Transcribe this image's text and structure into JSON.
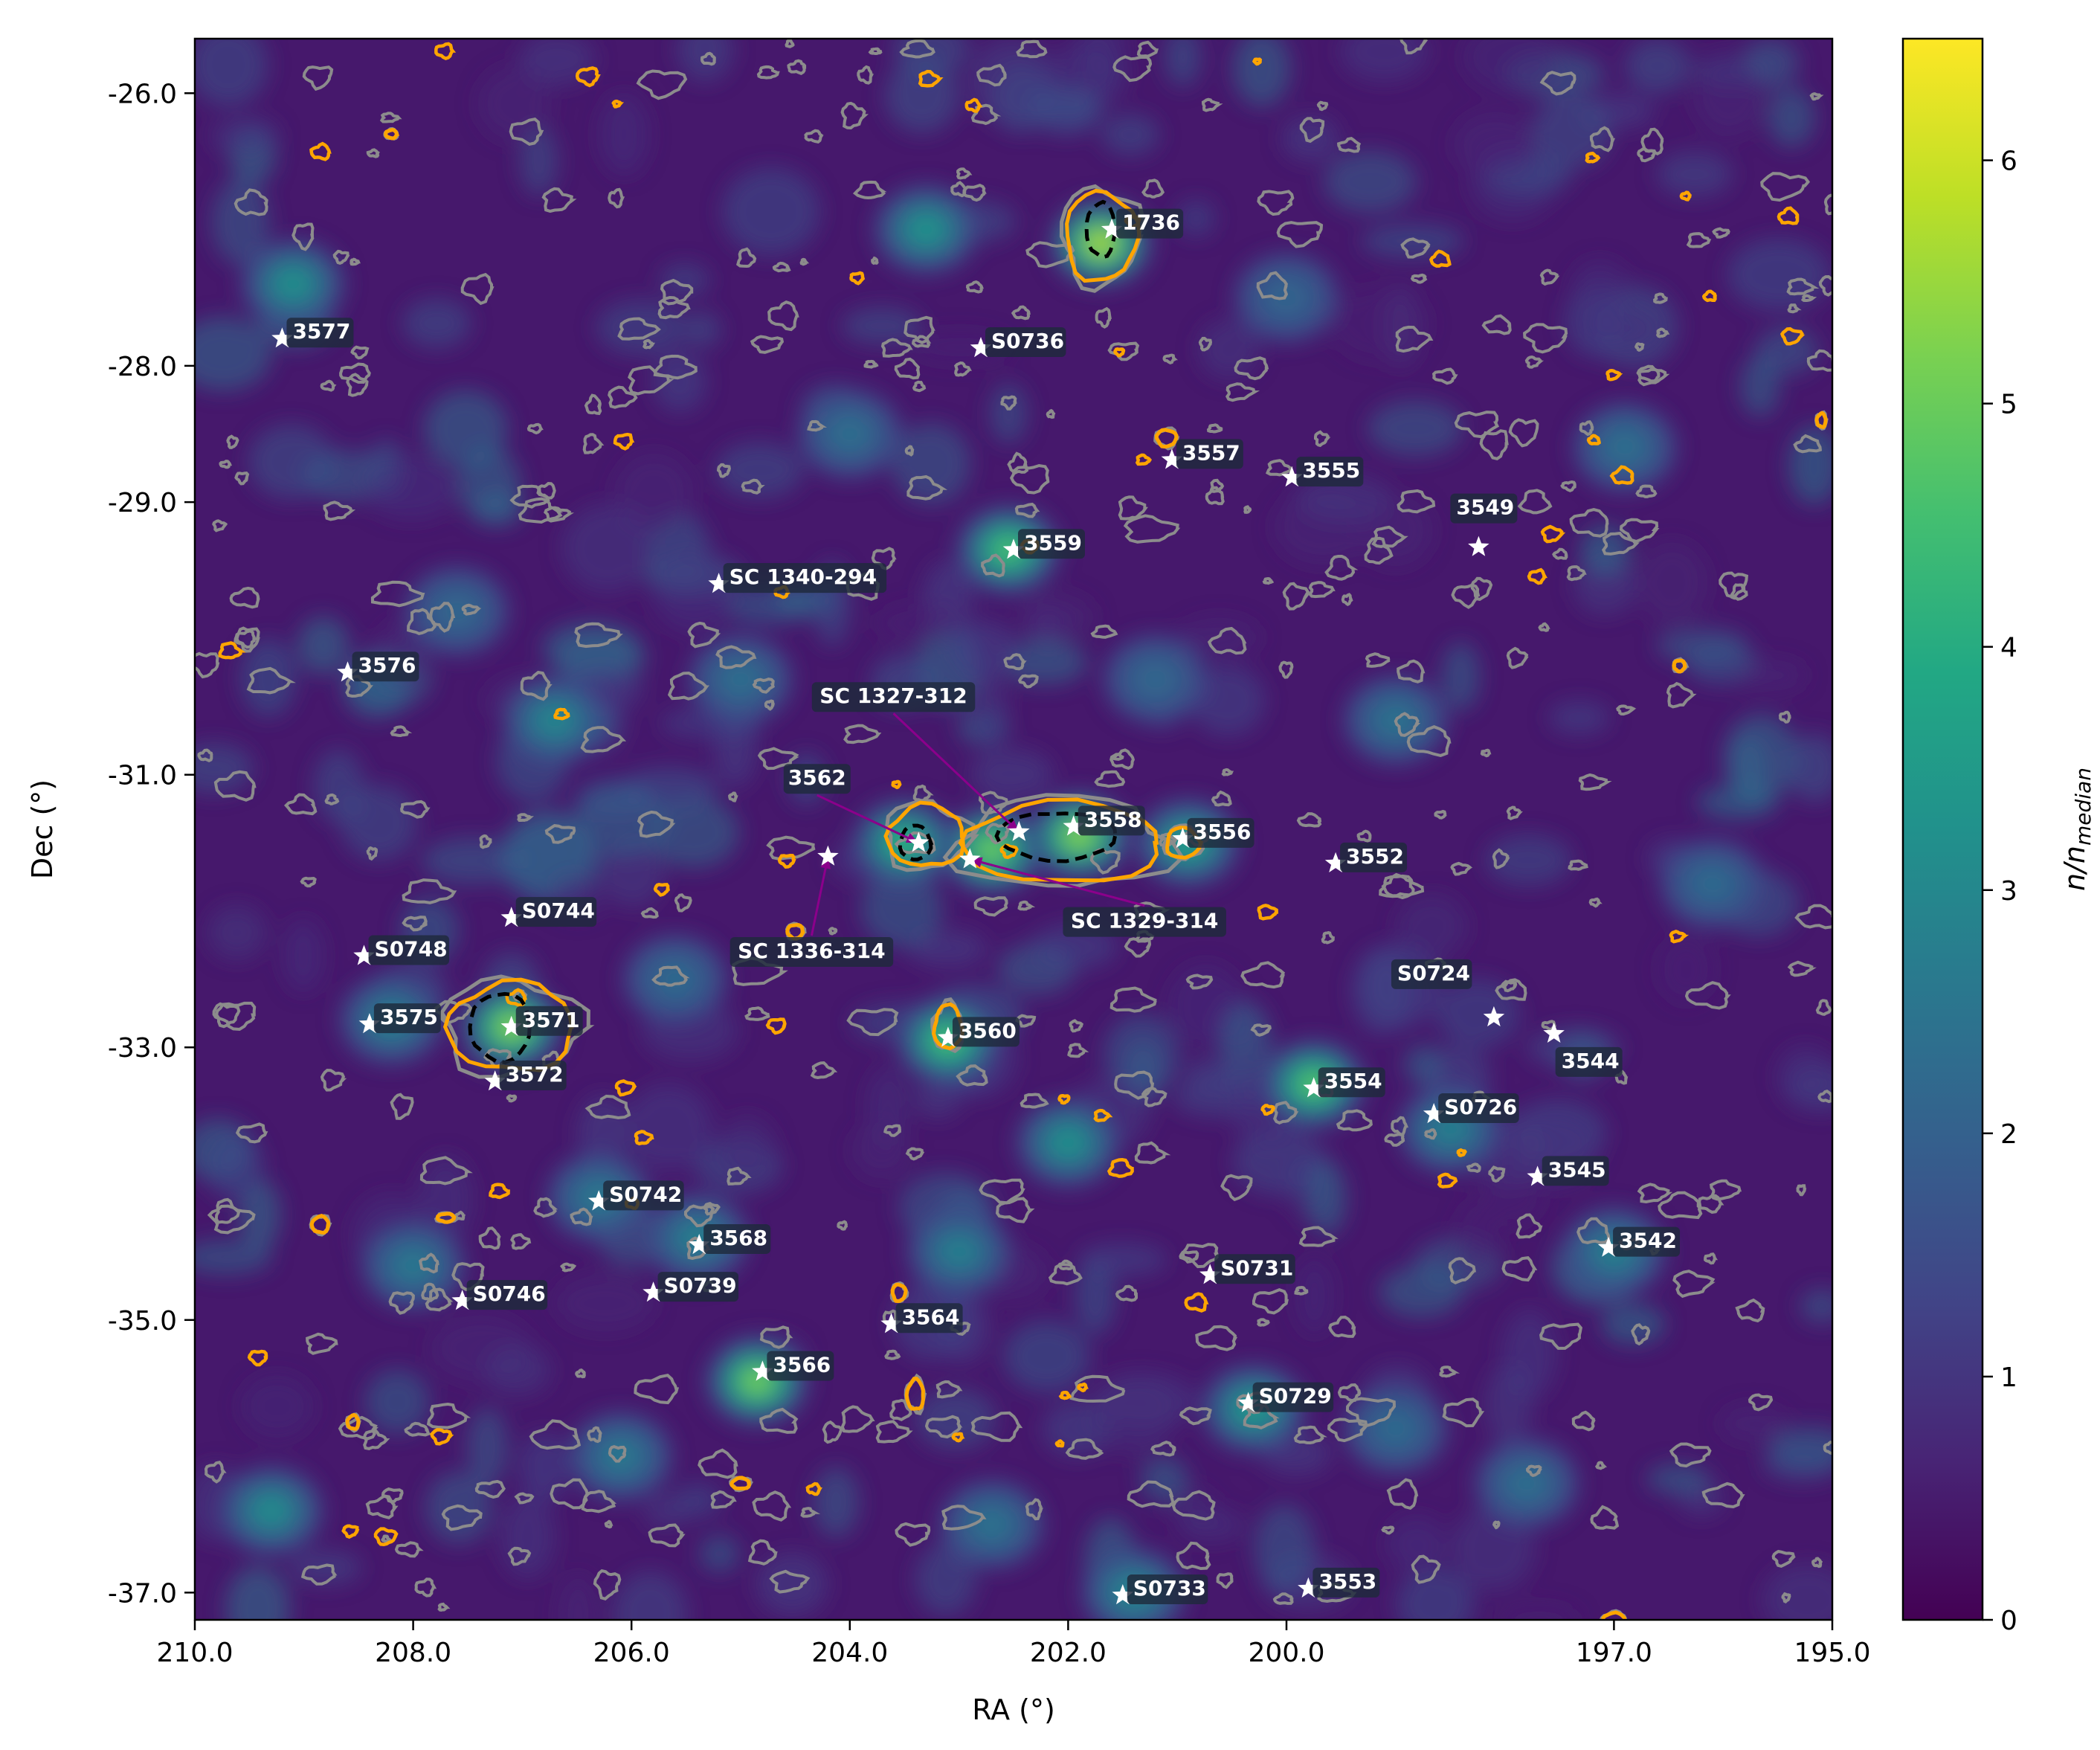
{
  "chart_data": {
    "type": "heatmap",
    "xlabel": "RA (°)",
    "ylabel": "Dec (°)",
    "colorbar_label": "n/n_median",
    "colorbar_label_main": "n/n",
    "colorbar_label_sub": "median",
    "colormap": "viridis",
    "xlim": [
      210.0,
      195.0
    ],
    "ylim": [
      -37.2,
      -25.6
    ],
    "clim": [
      0,
      6.5
    ],
    "xticks": [
      210.0,
      208.0,
      206.0,
      204.0,
      202.0,
      200.0,
      197.0,
      195.0
    ],
    "xtick_labels": [
      "210.0",
      "208.0",
      "206.0",
      "204.0",
      "202.0",
      "200.0",
      "197.0",
      "195.0"
    ],
    "yticks": [
      -26.0,
      -28.0,
      -29.0,
      -31.0,
      -33.0,
      -35.0,
      -37.0
    ],
    "ytick_labels": [
      "-26.0",
      "-28.0",
      "-29.0",
      "-31.0",
      "-33.0",
      "-35.0",
      "-37.0"
    ],
    "cticks": [
      0,
      1,
      2,
      3,
      4,
      5,
      6
    ],
    "ctick_labels": [
      "0",
      "1",
      "2",
      "3",
      "4",
      "5",
      "6"
    ],
    "contour_colors": {
      "orange": "#ffa500",
      "gray": "#8c8c8c",
      "black": "#000000"
    },
    "marker_color": "#ffffff",
    "arrow_color": "#8b008b",
    "label_bg": "#1f2a3c",
    "clusters": [
      {
        "name": "1736",
        "ra": 201.6,
        "dec": -27.0
      },
      {
        "name": "3577",
        "ra": 209.2,
        "dec": -27.8
      },
      {
        "name": "S0736",
        "ra": 202.8,
        "dec": -27.87
      },
      {
        "name": "3557",
        "ra": 201.05,
        "dec": -28.69
      },
      {
        "name": "3555",
        "ra": 199.95,
        "dec": -28.82
      },
      {
        "name": "3549",
        "ra": 198.24,
        "dec": -29.33
      },
      {
        "name": "3559",
        "ra": 202.5,
        "dec": -29.35
      },
      {
        "name": "SC 1340-294",
        "ra": 205.2,
        "dec": -29.6
      },
      {
        "name": "3576",
        "ra": 208.6,
        "dec": -30.25
      },
      {
        "name": "3558",
        "ra": 201.95,
        "dec": -31.38
      },
      {
        "name": "3562",
        "ra": 203.37,
        "dec": -31.5
      },
      {
        "name": "SC 1327-312",
        "ra": 202.45,
        "dec": -31.42
      },
      {
        "name": "SC 1329-314",
        "ra": 202.9,
        "dec": -31.62
      },
      {
        "name": "SC 1336-314",
        "ra": 204.2,
        "dec": -31.6
      },
      {
        "name": "3556",
        "ra": 200.95,
        "dec": -31.47
      },
      {
        "name": "3552",
        "ra": 199.55,
        "dec": -31.65
      },
      {
        "name": "S0744",
        "ra": 207.1,
        "dec": -32.05
      },
      {
        "name": "S0748",
        "ra": 208.45,
        "dec": -32.33
      },
      {
        "name": "3571",
        "ra": 207.1,
        "dec": -32.85
      },
      {
        "name": "3575",
        "ra": 208.4,
        "dec": -32.83
      },
      {
        "name": "3572",
        "ra": 207.25,
        "dec": -33.25
      },
      {
        "name": "3560",
        "ra": 203.1,
        "dec": -32.93
      },
      {
        "name": "S0724",
        "ra": 198.1,
        "dec": -32.78
      },
      {
        "name": "3544",
        "ra": 197.55,
        "dec": -32.9
      },
      {
        "name": "3554",
        "ra": 199.75,
        "dec": -33.3
      },
      {
        "name": "S0726",
        "ra": 198.65,
        "dec": -33.49
      },
      {
        "name": "3545",
        "ra": 197.7,
        "dec": -33.95
      },
      {
        "name": "S0742",
        "ra": 206.3,
        "dec": -34.13
      },
      {
        "name": "3568",
        "ra": 205.38,
        "dec": -34.45
      },
      {
        "name": "3542",
        "ra": 197.05,
        "dec": -34.47
      },
      {
        "name": "S0731",
        "ra": 200.7,
        "dec": -34.67
      },
      {
        "name": "S0746",
        "ra": 207.55,
        "dec": -34.86
      },
      {
        "name": "S0739",
        "ra": 205.8,
        "dec": -34.8
      },
      {
        "name": "3564",
        "ra": 203.62,
        "dec": -35.03
      },
      {
        "name": "3566",
        "ra": 204.8,
        "dec": -35.38
      },
      {
        "name": "S0729",
        "ra": 200.35,
        "dec": -35.61
      },
      {
        "name": "S0733",
        "ra": 201.5,
        "dec": -37.02
      },
      {
        "name": "3553",
        "ra": 199.8,
        "dec": -36.97
      }
    ],
    "density_peaks": [
      {
        "ra": 201.7,
        "dec": -27.1,
        "amp": 6.2
      },
      {
        "ra": 201.9,
        "dec": -31.45,
        "amp": 5.8
      },
      {
        "ra": 202.7,
        "dec": -31.55,
        "amp": 5.5
      },
      {
        "ra": 203.5,
        "dec": -31.5,
        "amp": 4.5
      },
      {
        "ra": 207.1,
        "dec": -32.85,
        "amp": 5.8
      },
      {
        "ra": 204.85,
        "dec": -35.45,
        "amp": 5.6
      },
      {
        "ra": 203.1,
        "dec": -32.95,
        "amp": 5.0
      },
      {
        "ra": 199.75,
        "dec": -33.27,
        "amp": 5.2
      },
      {
        "ra": 202.55,
        "dec": -29.35,
        "amp": 5.0
      },
      {
        "ra": 200.3,
        "dec": -35.65,
        "amp": 3.8
      },
      {
        "ra": 209.1,
        "dec": -27.4,
        "amp": 3.5
      },
      {
        "ra": 203.3,
        "dec": -27.0,
        "amp": 3.6
      },
      {
        "ra": 202.0,
        "dec": -33.7,
        "amp": 3.5
      },
      {
        "ra": 200.9,
        "dec": -31.5,
        "amp": 4.0
      },
      {
        "ra": 197.0,
        "dec": -34.5,
        "amp": 3.0
      },
      {
        "ra": 198.5,
        "dec": -33.6,
        "amp": 3.0
      },
      {
        "ra": 205.4,
        "dec": -34.4,
        "amp": 3.0
      },
      {
        "ra": 206.7,
        "dec": -30.6,
        "amp": 3.2
      },
      {
        "ra": 208.2,
        "dec": -32.8,
        "amp": 3.0
      },
      {
        "ra": 201.4,
        "dec": -37.0,
        "amp": 3.2
      },
      {
        "ra": 209.3,
        "dec": -36.4,
        "amp": 3.4
      },
      {
        "ra": 206.1,
        "dec": -36.0,
        "amp": 2.8
      },
      {
        "ra": 196.9,
        "dec": -28.6,
        "amp": 2.5
      },
      {
        "ra": 205.0,
        "dec": -30.3,
        "amp": 2.5
      },
      {
        "ra": 199.0,
        "dec": -30.6,
        "amp": 2.6
      },
      {
        "ra": 203.0,
        "dec": -34.5,
        "amp": 3.0
      },
      {
        "ra": 197.8,
        "dec": -36.2,
        "amp": 2.5
      },
      {
        "ra": 208.0,
        "dec": -34.6,
        "amp": 2.8
      },
      {
        "ra": 199.0,
        "dec": -35.8,
        "amp": 2.4
      },
      {
        "ra": 204.0,
        "dec": -28.5,
        "amp": 2.5
      },
      {
        "ra": 206.3,
        "dec": -34.1,
        "amp": 2.8
      },
      {
        "ra": 200.0,
        "dec": -27.5,
        "amp": 2.2
      },
      {
        "ra": 207.6,
        "dec": -29.8,
        "amp": 2.3
      },
      {
        "ra": 196.1,
        "dec": -31.8,
        "amp": 2.4
      },
      {
        "ra": 202.7,
        "dec": -36.5,
        "amp": 2.6
      },
      {
        "ra": 205.6,
        "dec": -32.5,
        "amp": 2.4
      },
      {
        "ra": 201.2,
        "dec": -30.3,
        "amp": 2.3
      }
    ],
    "orange_contours": [
      {
        "ra": 201.7,
        "dec": -27.05,
        "w": 0.65,
        "h": 0.65
      },
      {
        "ra": 202.05,
        "dec": -31.5,
        "w": 1.8,
        "h": 0.6
      },
      {
        "ra": 203.3,
        "dec": -31.45,
        "w": 0.7,
        "h": 0.45
      },
      {
        "ra": 207.1,
        "dec": -32.85,
        "w": 1.15,
        "h": 0.65
      },
      {
        "ra": 203.1,
        "dec": -32.85,
        "w": 0.25,
        "h": 0.32
      },
      {
        "ra": 200.95,
        "dec": -31.5,
        "w": 0.3,
        "h": 0.22
      },
      {
        "ra": 201.1,
        "dec": -28.53,
        "w": 0.18,
        "h": 0.12
      },
      {
        "ra": 204.5,
        "dec": -32.15,
        "w": 0.14,
        "h": 0.1
      },
      {
        "ra": 208.85,
        "dec": -34.3,
        "w": 0.15,
        "h": 0.12
      },
      {
        "ra": 203.55,
        "dec": -34.8,
        "w": 0.12,
        "h": 0.12
      },
      {
        "ra": 203.4,
        "dec": -35.55,
        "w": 0.15,
        "h": 0.22
      },
      {
        "ra": 205.0,
        "dec": -36.2,
        "w": 0.16,
        "h": 0.08
      },
      {
        "ra": 208.55,
        "dec": -35.75,
        "w": 0.1,
        "h": 0.1
      },
      {
        "ra": 197.0,
        "dec": -37.2,
        "w": 0.2,
        "h": 0.1
      },
      {
        "ra": 196.4,
        "dec": -30.2,
        "w": 0.1,
        "h": 0.08
      },
      {
        "ra": 195.1,
        "dec": -28.4,
        "w": 0.08,
        "h": 0.1
      },
      {
        "ra": 207.7,
        "dec": -34.25,
        "w": 0.15,
        "h": 0.06
      },
      {
        "ra": 208.2,
        "dec": -26.3,
        "w": 0.1,
        "h": 0.06
      }
    ],
    "black_contours": [
      {
        "ra": 201.7,
        "dec": -27.0,
        "w": 0.26,
        "h": 0.4
      },
      {
        "ra": 202.1,
        "dec": -31.45,
        "w": 1.1,
        "h": 0.35
      },
      {
        "ra": 203.4,
        "dec": -31.5,
        "w": 0.28,
        "h": 0.25
      },
      {
        "ra": 207.2,
        "dec": -32.85,
        "w": 0.55,
        "h": 0.5
      }
    ],
    "arrows": [
      {
        "label": "SC 1327-312",
        "label_ra": 203.6,
        "label_dec": -30.43,
        "to_ra": 202.45,
        "to_dec": -31.42
      },
      {
        "label": "3562",
        "label_ra": 204.3,
        "label_dec": -31.03,
        "to_ra": 203.37,
        "to_dec": -31.5
      },
      {
        "label": "SC 1329-314",
        "label_ra": 201.3,
        "label_dec": -32.08,
        "to_ra": 202.9,
        "to_dec": -31.62
      },
      {
        "label": "SC 1336-314",
        "label_ra": 204.35,
        "label_dec": -32.3,
        "to_ra": 204.2,
        "to_dec": -31.6
      }
    ]
  }
}
